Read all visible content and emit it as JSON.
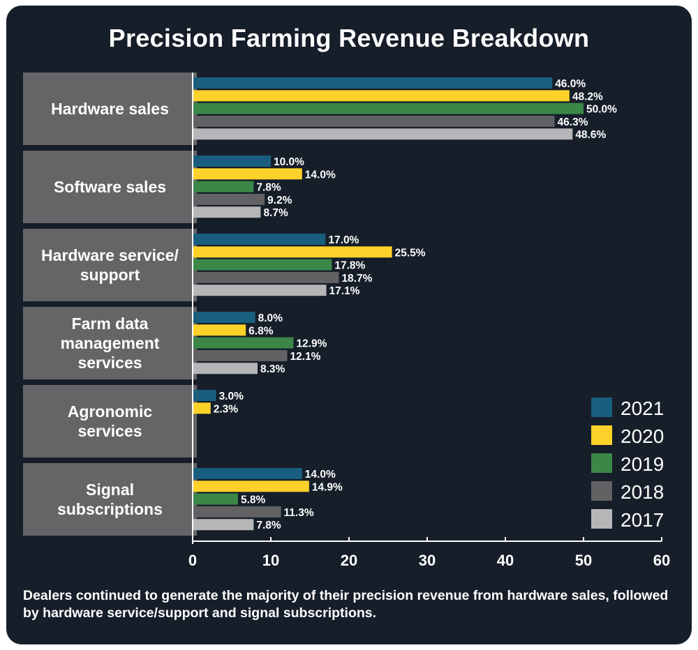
{
  "title": "Precision Farming Revenue Breakdown",
  "caption": "Dealers continued to generate the majority of their precision revenue from hardware sales, followed by hardware service/support and signal subscriptions.",
  "chart_data": {
    "type": "bar",
    "orientation": "horizontal",
    "title": "Precision Farming Revenue Breakdown",
    "categories": [
      [
        "Hardware sales"
      ],
      [
        "Software sales"
      ],
      [
        "Hardware service/",
        "support"
      ],
      [
        "Farm data",
        "management",
        "services"
      ],
      [
        "Agronomic",
        "services"
      ],
      [
        "Signal",
        "subscriptions"
      ]
    ],
    "series": [
      {
        "name": "2021",
        "color": "#1a5e7f",
        "values": [
          46.0,
          10.0,
          17.0,
          8.0,
          3.0,
          14.0
        ],
        "labels": [
          "46.0%",
          "10.0%",
          "17.0%",
          "8.0%",
          "3.0%",
          "14.0%"
        ]
      },
      {
        "name": "2020",
        "color": "#fcd22a",
        "values": [
          48.2,
          14.0,
          25.5,
          6.8,
          2.3,
          14.9
        ],
        "labels": [
          "48.2%",
          "14.0%",
          "25.5%",
          "6.8%",
          "2.3%",
          "14.9%"
        ]
      },
      {
        "name": "2019",
        "color": "#3b8748",
        "values": [
          50.0,
          7.8,
          17.8,
          12.9,
          null,
          5.8
        ],
        "labels": [
          "50.0%",
          "7.8%",
          "17.8%",
          "12.9%",
          "",
          "5.8%"
        ]
      },
      {
        "name": "2018",
        "color": "#626264",
        "values": [
          46.3,
          9.2,
          18.7,
          12.1,
          null,
          11.3
        ],
        "labels": [
          "46.3%",
          "9.2%",
          "18.7%",
          "12.1%",
          "",
          "11.3%"
        ]
      },
      {
        "name": "2017",
        "color": "#b6b6b8",
        "values": [
          48.6,
          8.7,
          17.1,
          8.3,
          null,
          7.8
        ],
        "labels": [
          "48.6%",
          "8.7%",
          "17.1%",
          "8.3%",
          "",
          "7.8%"
        ]
      }
    ],
    "x_ticks": [
      "0",
      "10",
      "20",
      "30",
      "40",
      "50",
      "60"
    ],
    "xlim": [
      0,
      60
    ],
    "legend": [
      "2021",
      "2020",
      "2019",
      "2018",
      "2017"
    ],
    "legend_position": "bottom-right",
    "grid": false
  },
  "colors": {
    "background": "#161e29",
    "category_box": "#656567",
    "axis": "#ffffff"
  }
}
